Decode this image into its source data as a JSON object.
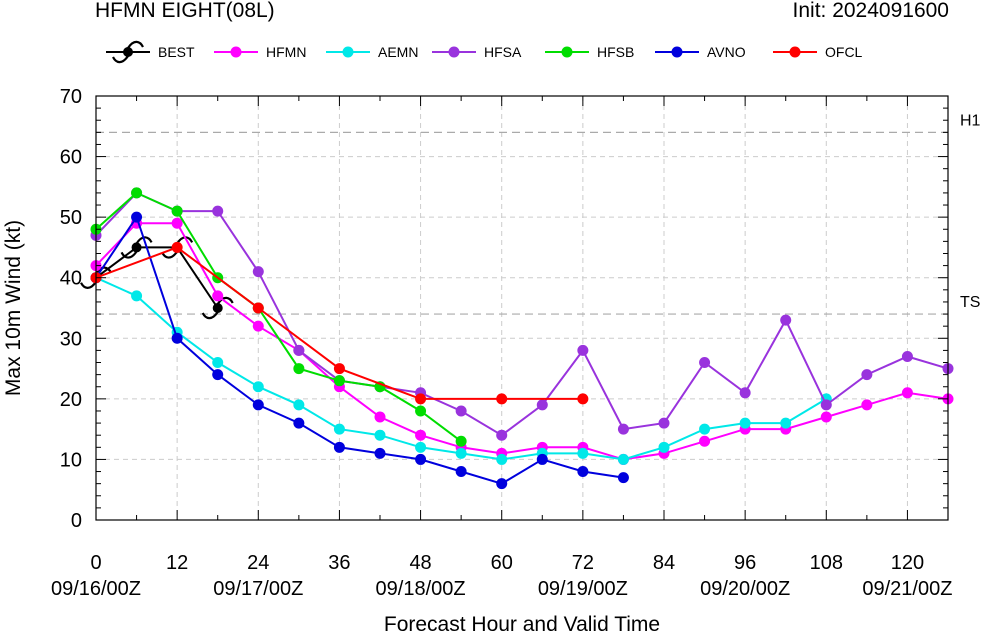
{
  "title_left": "HFMN EIGHT(08L)",
  "title_right": "Init: 2024091600",
  "chart_data": {
    "type": "line",
    "xlabel": "Forecast Hour and Valid Time",
    "ylabel": "Max 10m Wind (kt)",
    "xlim": [
      0,
      126
    ],
    "ylim": [
      0,
      70
    ],
    "x_ticks": [
      0,
      12,
      24,
      36,
      48,
      60,
      72,
      84,
      96,
      108,
      120
    ],
    "x_tick_labels": [
      "0",
      "12",
      "24",
      "36",
      "48",
      "60",
      "72",
      "84",
      "96",
      "108",
      "120"
    ],
    "x_date_ticks": [
      0,
      24,
      48,
      72,
      96,
      120
    ],
    "x_date_labels": [
      "09/16/00Z",
      "09/17/00Z",
      "09/18/00Z",
      "09/19/00Z",
      "09/20/00Z",
      "09/21/00Z"
    ],
    "y_ticks": [
      0,
      10,
      20,
      30,
      40,
      50,
      60,
      70
    ],
    "y_tick_labels": [
      "0",
      "10",
      "20",
      "30",
      "40",
      "50",
      "60",
      "70"
    ],
    "grid": true,
    "thresholds": [
      {
        "label": "H1",
        "value": 64
      },
      {
        "label": "TS",
        "value": 34
      }
    ],
    "legend_position": "top",
    "series": [
      {
        "name": "BEST",
        "color": "#000000",
        "marker": "hurricane-icon",
        "x": [
          0,
          6,
          12,
          18
        ],
        "y": [
          40,
          45,
          45,
          35
        ]
      },
      {
        "name": "HFMN",
        "color": "#ff00ff",
        "marker": "circle",
        "x": [
          0,
          6,
          12,
          18,
          24,
          30,
          36,
          42,
          48,
          54,
          60,
          66,
          72,
          78,
          84,
          90,
          96,
          102,
          108,
          114,
          120,
          126
        ],
        "y": [
          42,
          49,
          49,
          37,
          32,
          28,
          22,
          17,
          14,
          12,
          11,
          12,
          12,
          10,
          11,
          13,
          15,
          15,
          17,
          19,
          21,
          20
        ]
      },
      {
        "name": "AEMN",
        "color": "#00e8e8",
        "marker": "circle",
        "x": [
          0,
          6,
          12,
          18,
          24,
          30,
          36,
          42,
          48,
          54,
          60,
          66,
          72,
          78,
          84,
          90,
          96,
          102,
          108
        ],
        "y": [
          40,
          37,
          31,
          26,
          22,
          19,
          15,
          14,
          12,
          11,
          10,
          11,
          11,
          10,
          12,
          15,
          16,
          16,
          20
        ]
      },
      {
        "name": "HFSA",
        "color": "#9933dd",
        "marker": "circle",
        "x": [
          0,
          6,
          12,
          18,
          24,
          30,
          36,
          42,
          48,
          54,
          60,
          66,
          72,
          78,
          84,
          90,
          96,
          102,
          108,
          114,
          120,
          126
        ],
        "y": [
          47,
          54,
          51,
          51,
          41,
          28,
          23,
          22,
          21,
          18,
          14,
          19,
          28,
          15,
          16,
          26,
          21,
          33,
          19,
          24,
          27,
          25
        ]
      },
      {
        "name": "HFSB",
        "color": "#00dd00",
        "marker": "circle",
        "x": [
          0,
          6,
          12,
          18,
          24,
          30,
          36,
          42,
          48,
          54
        ],
        "y": [
          48,
          54,
          51,
          40,
          35,
          25,
          23,
          22,
          18,
          13
        ]
      },
      {
        "name": "AVNO",
        "color": "#0000dd",
        "marker": "circle",
        "x": [
          0,
          6,
          12,
          18,
          24,
          30,
          36,
          42,
          48,
          54,
          60,
          66,
          72,
          78
        ],
        "y": [
          40,
          50,
          30,
          24,
          19,
          16,
          12,
          11,
          10,
          8,
          6,
          10,
          8,
          7
        ]
      },
      {
        "name": "OFCL",
        "color": "#ff0000",
        "marker": "circle",
        "x": [
          0,
          12,
          24,
          36,
          48,
          60,
          72
        ],
        "y": [
          40,
          45,
          35,
          25,
          20,
          20,
          20
        ]
      }
    ]
  }
}
